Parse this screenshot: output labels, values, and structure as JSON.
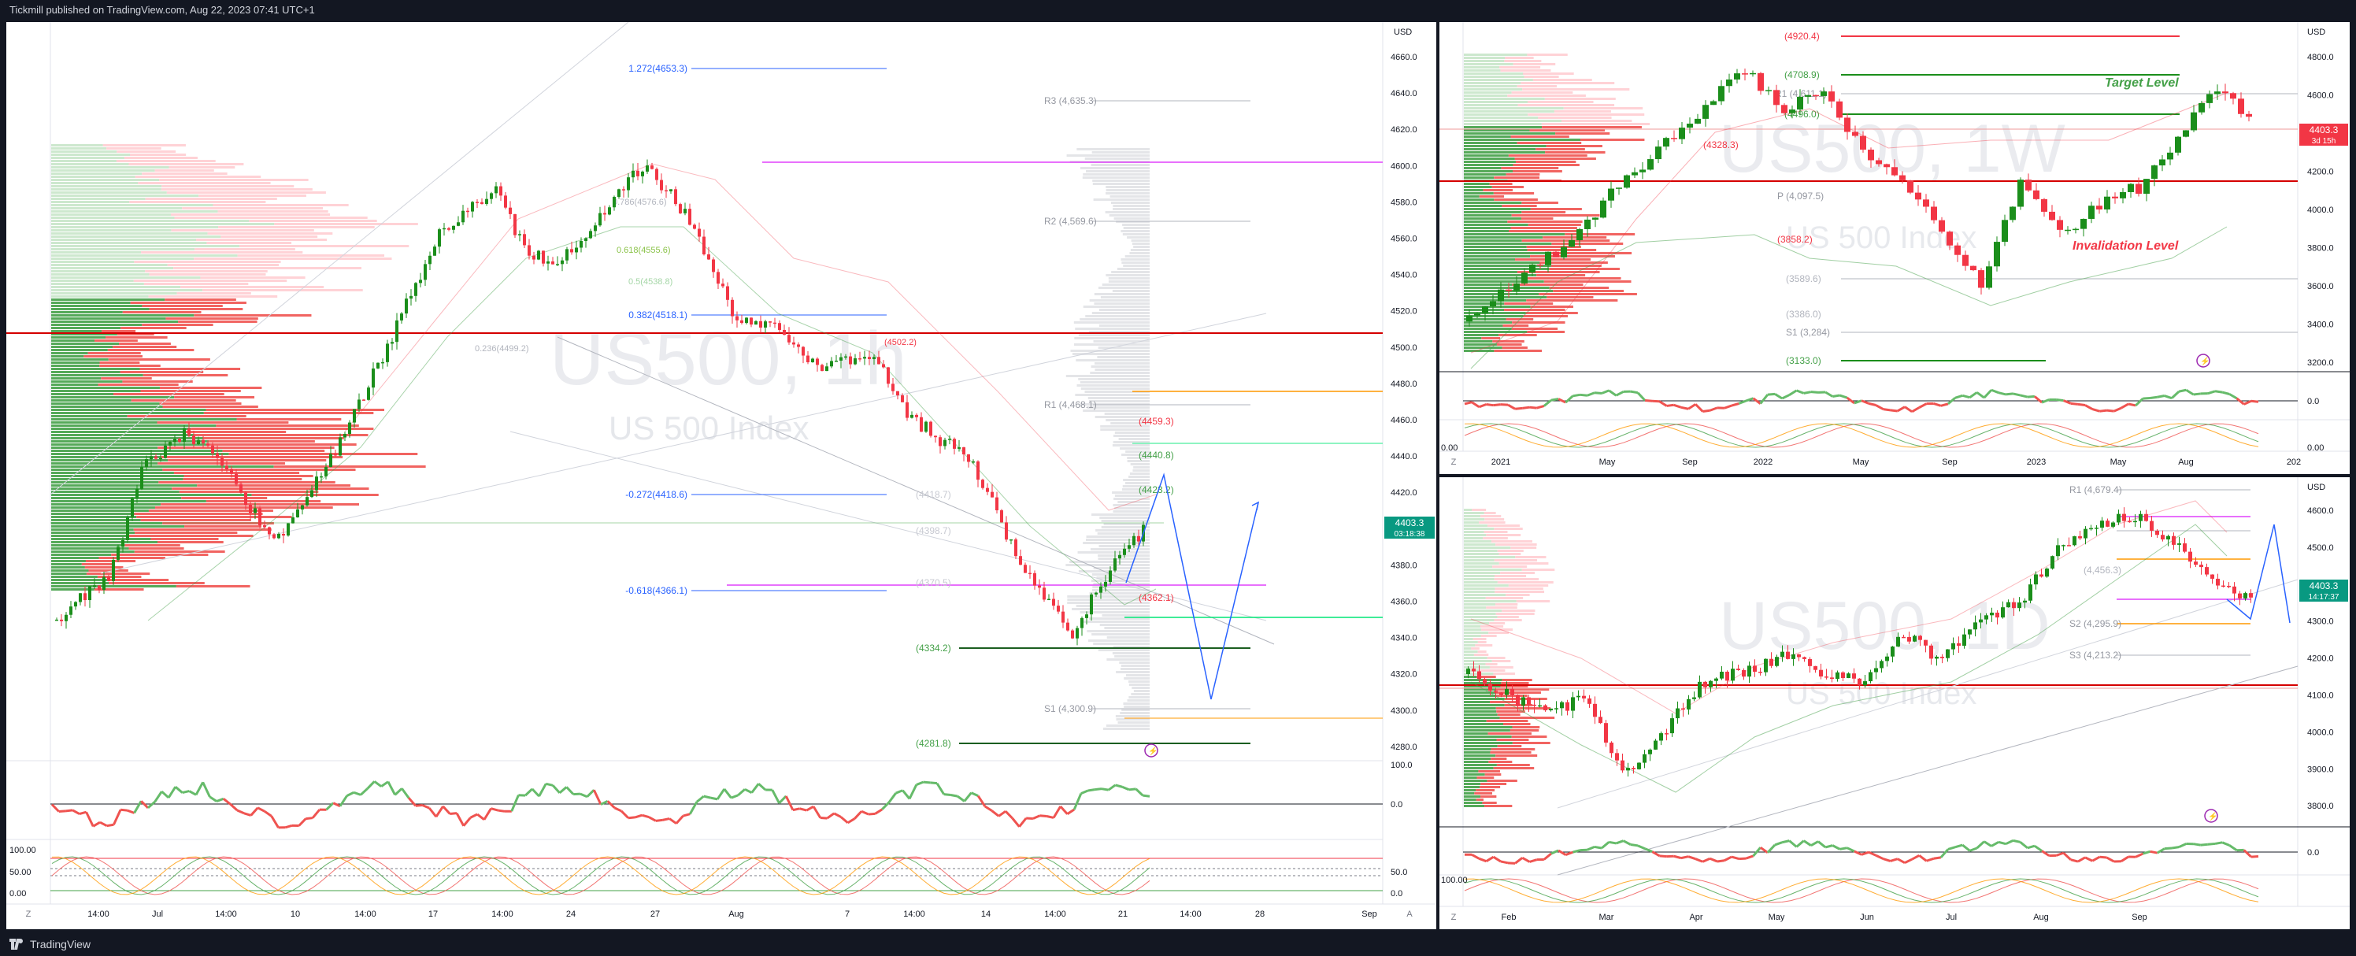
{
  "header": {
    "published": "Tickmill published on TradingView.com, Aug 22, 2023 07:41 UTC+1"
  },
  "footer": {
    "brand": "TradingView"
  },
  "colors": {
    "up": "#26a69a",
    "green": "#1e8f1e",
    "red": "#f23645",
    "blue": "#2962ff",
    "price_label": "#089981",
    "price_label_red": "#f23645"
  },
  "left_chart": {
    "currency": "USD",
    "watermark": "US500, 1h",
    "watermark_sub": "US 500 Index",
    "price_axis": [
      "4660.0",
      "4640.0",
      "4620.0",
      "4600.0",
      "4580.0",
      "4560.0",
      "4540.0",
      "4520.0",
      "4500.0",
      "4480.0",
      "4460.0",
      "4440.0",
      "4420.0",
      "4400.0",
      "4380.0",
      "4360.0",
      "4340.0",
      "4320.0",
      "4300.0",
      "4280.0"
    ],
    "current_price": "4403.3",
    "countdown": "03:18:38",
    "levels": {
      "fib1272": "1.272(4653.3)",
      "r3": "R3 (4,635.3)",
      "r2": "R2 (4,569.6)",
      "fib0382": "0.382(4518.1)",
      "fib0236": "0.236(4499.2)",
      "r1": "R1 (4,468.1)",
      "l4459": "(4459.3)",
      "l4440": "(4440.8)",
      "l4423": "(4423.2)",
      "fibm0272": "-0.272(4418.6)",
      "l4418": "(4418.7)",
      "l4398": "(4398.7)",
      "l4370": "(4370.5)",
      "fibm0618": "-0.618(4366.1)",
      "l4362": "(4362.1)",
      "l4334": "(4334.2)",
      "s1": "S1 (4,300.9)",
      "l4281": "(4281.8)",
      "fib0786": "0.786(4576.6)",
      "fib0618": "0.618(4555.6)",
      "fib05": "0.5(4538.8)",
      "l4502": "(4502.2)"
    },
    "time_axis": [
      "14:00",
      "Jul",
      "14:00",
      "10",
      "14:00",
      "17",
      "14:00",
      "24",
      "27",
      "Aug",
      "7",
      "14:00",
      "14",
      "14:00",
      "21",
      "14:00",
      "28",
      "Sep"
    ],
    "rsi_axis": [
      "100.0",
      "0.0"
    ],
    "stoch_axis": [
      "100.00",
      "50.00",
      "0.00"
    ],
    "stoch_axis_right": [
      "50.0",
      "0.0"
    ]
  },
  "right_top_chart": {
    "currency": "USD",
    "watermark": "US500, 1W",
    "watermark_sub": "US 500 Index",
    "price_axis": [
      "4800.0",
      "4600.0",
      "4400.0",
      "4200.0",
      "4000.0",
      "3800.0",
      "3600.0",
      "3400.0",
      "3200.0"
    ],
    "current_price": "4403.3",
    "countdown": "3d 15h",
    "levels": {
      "l4920": "(4920.4)",
      "l4708": "(4708.9)",
      "r1": "R1 (4,611.1)",
      "l4496": "(4496.0)",
      "target_label": "Target Level",
      "l4328": "(4328.3)",
      "p": "P (4,097.5)",
      "l3858": "(3858.2)",
      "invalidation_label": "Invalidation Level",
      "l3589": "(3589.6)",
      "l3386": "(3386.0)",
      "s1": "S1 (3,284)",
      "l3133": "(3133.0)"
    },
    "time_axis": [
      "2021",
      "May",
      "Sep",
      "2022",
      "May",
      "Sep",
      "2023",
      "May",
      "Aug",
      "202"
    ],
    "rsi_axis": [
      "0.0"
    ],
    "stoch_axis": [
      "0.00"
    ]
  },
  "right_bottom_chart": {
    "currency": "USD",
    "watermark": "US500, 1D",
    "watermark_sub": "US 500 Index",
    "price_axis": [
      "4600.0",
      "4500.0",
      "4400.0",
      "4300.0",
      "4200.0",
      "4100.0",
      "4000.0",
      "3900.0",
      "3800.0"
    ],
    "current_price": "4403.3",
    "countdown": "14:17:37",
    "levels": {
      "r1": "R1 (4,679.4)",
      "l4456": "(4,456.3)",
      "s2": "S2 (4,295.9)",
      "s3": "S3 (4,213.2)"
    },
    "time_axis": [
      "Feb",
      "Mar",
      "Apr",
      "May",
      "Jun",
      "Jul",
      "Aug",
      "Sep"
    ],
    "rsi_axis": [
      "0.0"
    ],
    "stoch_axis": [
      "100.00"
    ]
  }
}
